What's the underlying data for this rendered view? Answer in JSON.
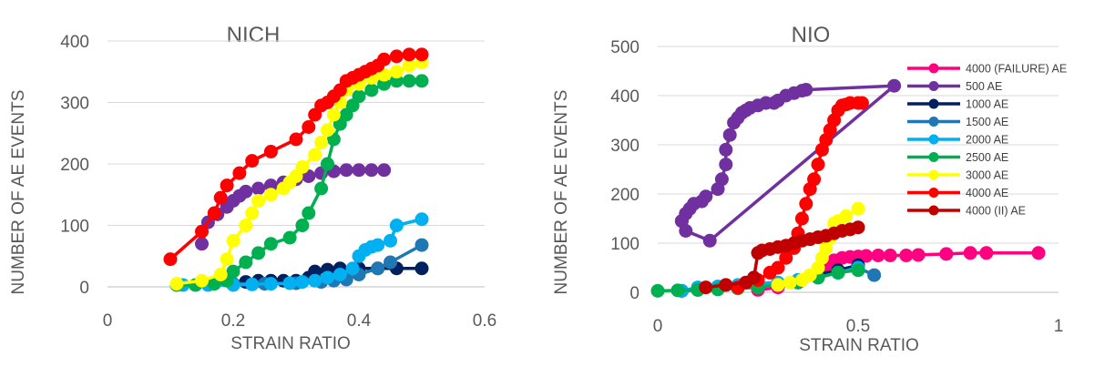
{
  "chart_data": [
    {
      "type": "scatter",
      "title": "NICH",
      "xlabel": "STRAIN RATIO",
      "ylabel": "NUMBER OF AE EVENTS",
      "xlim": [
        0,
        0.6
      ],
      "ylim": [
        0,
        400
      ],
      "xticks": [
        0,
        0.2,
        0.4,
        0.6
      ],
      "xtick_labels": [
        "0",
        "0.2",
        "0.4",
        "0.6"
      ],
      "yticks": [
        0,
        100,
        200,
        300,
        400
      ],
      "ytick_labels": [
        "0",
        "100",
        "200",
        "300",
        "400"
      ],
      "grid": "horizontal",
      "legend": "none",
      "series": [
        {
          "color": "#7030A0",
          "x": [
            0.15,
            0.16,
            0.175,
            0.19,
            0.2,
            0.21,
            0.22,
            0.24,
            0.26,
            0.28,
            0.3,
            0.32,
            0.34,
            0.36,
            0.38,
            0.4,
            0.42,
            0.44
          ],
          "y": [
            70,
            105,
            118,
            130,
            140,
            148,
            155,
            160,
            165,
            170,
            175,
            180,
            185,
            188,
            190,
            190,
            190,
            190
          ]
        },
        {
          "color": "#002060",
          "x": [
            0.2,
            0.22,
            0.24,
            0.26,
            0.28,
            0.3,
            0.32,
            0.33,
            0.35,
            0.37,
            0.4,
            0.43,
            0.46,
            0.5
          ],
          "y": [
            5,
            8,
            10,
            10,
            10,
            10,
            15,
            25,
            28,
            30,
            30,
            30,
            30,
            30
          ]
        },
        {
          "color": "#1F77B4",
          "x": [
            0.2,
            0.25,
            0.3,
            0.34,
            0.36,
            0.38,
            0.4,
            0.43,
            0.45,
            0.5
          ],
          "y": [
            5,
            5,
            6,
            8,
            10,
            12,
            20,
            30,
            40,
            68
          ]
        },
        {
          "color": "#00B0F0",
          "x": [
            0.12,
            0.16,
            0.2,
            0.23,
            0.26,
            0.29,
            0.31,
            0.33,
            0.35,
            0.37,
            0.39,
            0.4,
            0.41,
            0.42,
            0.43,
            0.45,
            0.46,
            0.5
          ],
          "y": [
            3,
            3,
            3,
            4,
            5,
            6,
            8,
            10,
            15,
            20,
            30,
            50,
            60,
            65,
            68,
            75,
            100,
            110
          ]
        },
        {
          "color": "#00B050",
          "x": [
            0.11,
            0.14,
            0.17,
            0.19,
            0.2,
            0.22,
            0.24,
            0.26,
            0.29,
            0.31,
            0.32,
            0.34,
            0.35,
            0.36,
            0.37,
            0.38,
            0.39,
            0.4,
            0.42,
            0.44,
            0.46,
            0.48,
            0.5
          ],
          "y": [
            3,
            3,
            5,
            10,
            25,
            40,
            55,
            70,
            80,
            100,
            120,
            160,
            200,
            240,
            265,
            280,
            295,
            310,
            320,
            330,
            335,
            335,
            335
          ]
        },
        {
          "color": "#FFFF00",
          "x": [
            0.11,
            0.15,
            0.18,
            0.19,
            0.2,
            0.22,
            0.23,
            0.24,
            0.26,
            0.28,
            0.29,
            0.3,
            0.31,
            0.33,
            0.34,
            0.35,
            0.36,
            0.37,
            0.38,
            0.4,
            0.42,
            0.44,
            0.46,
            0.48,
            0.5
          ],
          "y": [
            5,
            10,
            20,
            45,
            75,
            100,
            120,
            140,
            150,
            160,
            170,
            180,
            195,
            215,
            235,
            255,
            280,
            300,
            320,
            330,
            340,
            345,
            350,
            360,
            365
          ]
        },
        {
          "color": "#FF0000",
          "x": [
            0.1,
            0.15,
            0.17,
            0.18,
            0.19,
            0.21,
            0.23,
            0.26,
            0.3,
            0.32,
            0.33,
            0.34,
            0.35,
            0.36,
            0.37,
            0.38,
            0.39,
            0.4,
            0.41,
            0.42,
            0.43,
            0.44,
            0.46,
            0.48,
            0.5
          ],
          "y": [
            45,
            90,
            120,
            145,
            165,
            185,
            205,
            220,
            240,
            260,
            280,
            295,
            300,
            310,
            320,
            335,
            340,
            345,
            350,
            355,
            360,
            370,
            375,
            378,
            378
          ]
        }
      ]
    },
    {
      "type": "scatter",
      "title": "NIO",
      "xlabel": "STRAIN RATIO",
      "ylabel": "NUMBER OF AE EVENTS",
      "xlim": [
        0,
        1
      ],
      "ylim": [
        0,
        500
      ],
      "xticks": [
        0,
        0.5,
        1
      ],
      "xtick_labels": [
        "0",
        "0.5",
        "1"
      ],
      "yticks": [
        0,
        100,
        200,
        300,
        400,
        500
      ],
      "ytick_labels": [
        "0",
        "100",
        "200",
        "300",
        "400",
        "500"
      ],
      "grid": "horizontal",
      "legend": "right",
      "series": [
        {
          "name": "4000 (FAILURE) AE",
          "color": "#FF0080",
          "x": [
            0.25,
            0.3,
            0.35,
            0.4,
            0.42,
            0.44,
            0.46,
            0.48,
            0.5,
            0.52,
            0.55,
            0.58,
            0.62,
            0.65,
            0.72,
            0.78,
            0.82,
            0.95
          ],
          "y": [
            5,
            10,
            20,
            40,
            55,
            65,
            70,
            72,
            73,
            74,
            75,
            75,
            75,
            76,
            78,
            80,
            80,
            80
          ]
        },
        {
          "name": "500 AE",
          "color": "#7030A0",
          "x": [
            0.06,
            0.07,
            0.08,
            0.09,
            0.11,
            0.12,
            0.15,
            0.16,
            0.17,
            0.17,
            0.18,
            0.19,
            0.2,
            0.21,
            0.22,
            0.23,
            0.25,
            0.27,
            0.29,
            0.3,
            0.32,
            0.34,
            0.36,
            0.37,
            0.59,
            0.13,
            0.07,
            0.06
          ],
          "y": [
            145,
            160,
            170,
            180,
            185,
            195,
            210,
            230,
            260,
            290,
            320,
            345,
            355,
            365,
            370,
            375,
            380,
            385,
            385,
            390,
            400,
            405,
            410,
            412,
            420,
            105,
            125,
            145
          ]
        },
        {
          "name": "1000 AE",
          "color": "#002060",
          "x": [
            0.06,
            0.1,
            0.15,
            0.2,
            0.25,
            0.3,
            0.35,
            0.4,
            0.45,
            0.5
          ],
          "y": [
            3,
            5,
            8,
            10,
            12,
            18,
            25,
            35,
            45,
            55
          ]
        },
        {
          "name": "1500 AE",
          "color": "#1F77B4",
          "x": [
            0.06,
            0.1,
            0.15,
            0.2,
            0.25,
            0.3,
            0.35,
            0.4,
            0.45,
            0.5,
            0.54
          ],
          "y": [
            3,
            5,
            8,
            10,
            12,
            15,
            20,
            30,
            40,
            50,
            35
          ]
        },
        {
          "name": "2000 AE",
          "color": "#00B0F0",
          "x": [
            0.06,
            0.1,
            0.15,
            0.2,
            0.25,
            0.3,
            0.35,
            0.4,
            0.45,
            0.5
          ],
          "y": [
            3,
            10,
            12,
            15,
            18,
            20,
            25,
            30,
            40,
            50
          ]
        },
        {
          "name": "2500 AE",
          "color": "#00B050",
          "x": [
            0.0,
            0.05,
            0.1,
            0.15,
            0.2,
            0.25,
            0.3,
            0.35,
            0.4,
            0.45,
            0.5
          ],
          "y": [
            3,
            4,
            5,
            6,
            8,
            10,
            15,
            20,
            30,
            40,
            45
          ]
        },
        {
          "name": "3000 AE",
          "color": "#FFFF00",
          "x": [
            0.3,
            0.33,
            0.36,
            0.38,
            0.4,
            0.41,
            0.42,
            0.43,
            0.44,
            0.45,
            0.47,
            0.5
          ],
          "y": [
            15,
            20,
            25,
            35,
            50,
            70,
            90,
            110,
            140,
            145,
            155,
            170
          ]
        },
        {
          "name": "4000 AE",
          "color": "#FF0000",
          "x": [
            0.2,
            0.25,
            0.28,
            0.3,
            0.32,
            0.34,
            0.35,
            0.36,
            0.37,
            0.38,
            0.39,
            0.4,
            0.41,
            0.42,
            0.43,
            0.44,
            0.45,
            0.46,
            0.47,
            0.48,
            0.5,
            0.51
          ],
          "y": [
            10,
            25,
            40,
            50,
            70,
            90,
            120,
            150,
            180,
            210,
            230,
            260,
            290,
            310,
            330,
            350,
            370,
            380,
            382,
            385,
            385,
            385
          ]
        },
        {
          "name": "4000 (II) AE",
          "color": "#C00000",
          "x": [
            0.12,
            0.17,
            0.22,
            0.24,
            0.25,
            0.26,
            0.28,
            0.3,
            0.32,
            0.34,
            0.36,
            0.38,
            0.4,
            0.42,
            0.44,
            0.46,
            0.48,
            0.5
          ],
          "y": [
            10,
            15,
            20,
            30,
            80,
            85,
            88,
            92,
            95,
            100,
            105,
            108,
            112,
            115,
            120,
            125,
            128,
            132
          ]
        }
      ]
    }
  ]
}
